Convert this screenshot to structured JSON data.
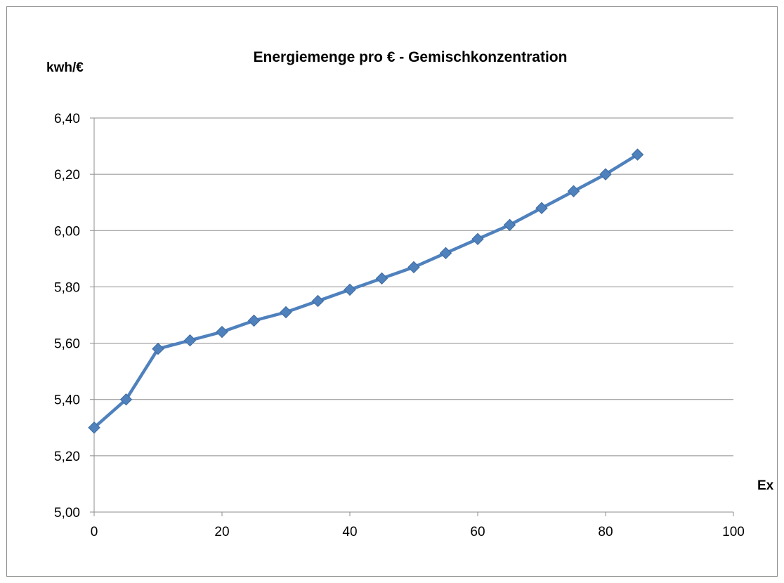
{
  "chart_data": {
    "type": "line",
    "title": "Energiemenge pro €  - Gemischkonzentration",
    "ylabel": "kwh/€",
    "xlabel": "Ex",
    "xlim": [
      0,
      100
    ],
    "ylim": [
      5.0,
      6.4
    ],
    "x_ticks": [
      "0",
      "20",
      "40",
      "60",
      "80",
      "100"
    ],
    "y_ticks": [
      "5,00",
      "5,20",
      "5,40",
      "5,60",
      "5,80",
      "6,00",
      "6,20",
      "6,40"
    ],
    "grid": "horizontal",
    "legend": "none",
    "series": [
      {
        "color": "#4F81BD",
        "marker": "diamond",
        "x": [
          0,
          5,
          10,
          15,
          20,
          25,
          30,
          35,
          40,
          45,
          50,
          55,
          60,
          65,
          70,
          75,
          80,
          85
        ],
        "y": [
          5.3,
          5.4,
          5.58,
          5.61,
          5.64,
          5.68,
          5.71,
          5.75,
          5.79,
          5.83,
          5.87,
          5.92,
          5.97,
          6.02,
          6.08,
          6.14,
          6.2,
          6.27
        ]
      }
    ]
  }
}
